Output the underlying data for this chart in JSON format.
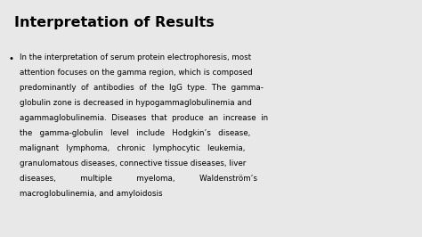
{
  "title": "Interpretation of Results",
  "background_color": "#e8e8e8",
  "title_color": "#000000",
  "title_fontsize": 11.5,
  "body_fontsize": 6.3,
  "body_color": "#000000",
  "bullet_lines": [
    "In the interpretation of serum protein electrophoresis, most",
    "attention focuses on the gamma region, which is composed",
    "predominantly  of  antibodies  of  the  IgG  type.  The  gamma-",
    "globulin zone is decreased in hypogammaglobulinemia and",
    "agammaglobulinemia.  Diseases  that  produce  an  increase  in",
    "the   gamma-globulin   level   include   Hodgkin’s   disease,",
    "malignant   lymphoma,   chronic   lymphocytic   leukemia,",
    "granulomatous diseases, connective tissue diseases, liver",
    "diseases,          multiple          myeloma,          Waldenström’s",
    "macroglobulinemia, and amyloidosis"
  ]
}
